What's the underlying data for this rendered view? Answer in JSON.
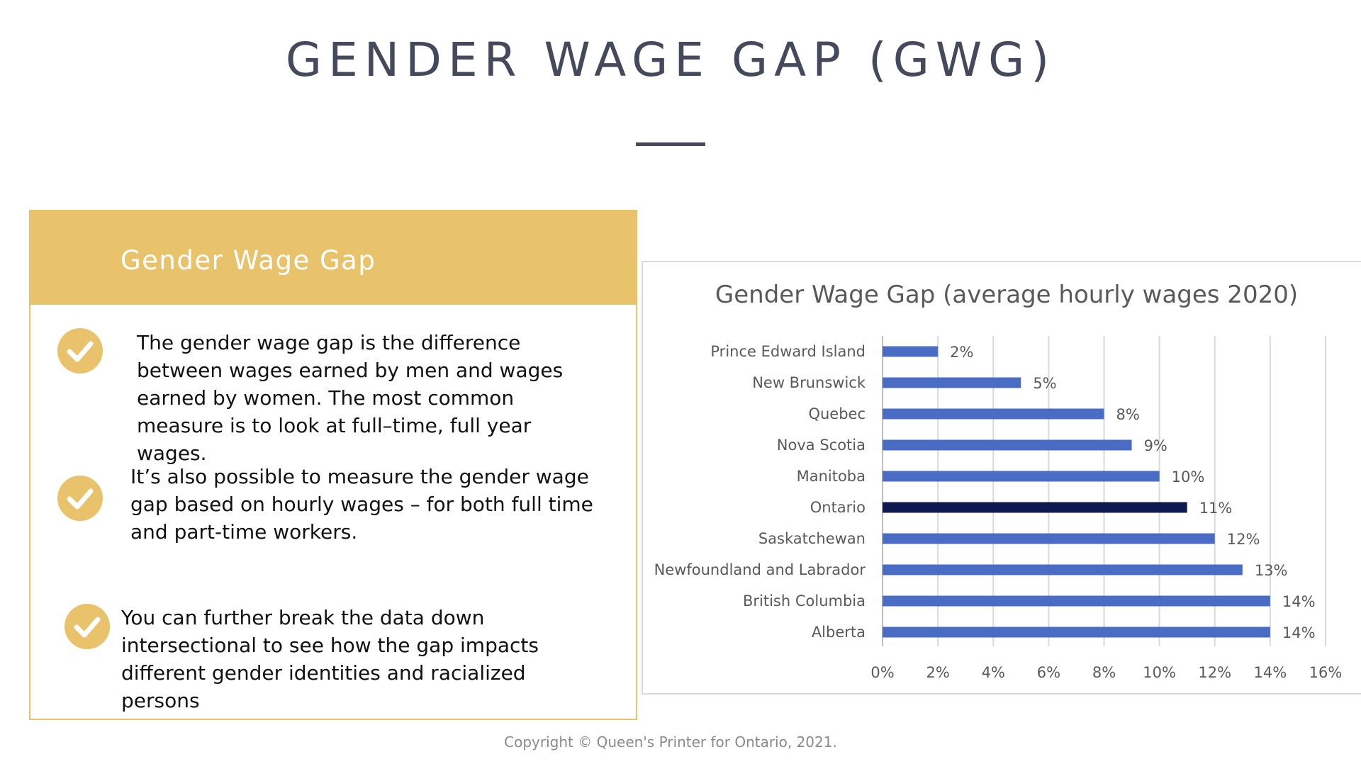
{
  "slide": {
    "title": "GENDER WAGE GAP (GWG)",
    "copyright": "Copyright © Queen's Printer for Ontario, 2021."
  },
  "info_card": {
    "title": "Gender Wage Gap",
    "bullets": [
      "The gender wage gap is the difference between wages earned by men and wages earned by women. The most common measure is to look at full–time, full year wages.",
      "It’s also possible to measure the gender wage gap based on hourly wages – for both full time and part-time workers.",
      "You can further break the data down intersectional to see how the gap impacts different gender identities and racialized persons"
    ]
  },
  "colors": {
    "accent": "#e8c36c",
    "title": "#44495c",
    "bar": "#4a6cc4",
    "bar_highlight": "#0e1a4f",
    "grid": "#d9d9d9"
  },
  "chart_data": {
    "type": "bar",
    "orientation": "horizontal",
    "title": "Gender Wage Gap (average hourly wages 2020)",
    "categories": [
      "Prince Edward Island",
      "New Brunswick",
      "Quebec",
      "Nova Scotia",
      "Manitoba",
      "Ontario",
      "Saskatchewan",
      "Newfoundland and Labrador",
      "British Columbia",
      "Alberta"
    ],
    "values": [
      2,
      5,
      8,
      9,
      10,
      11,
      12,
      13,
      14,
      14
    ],
    "data_labels": [
      "2%",
      "5%",
      "8%",
      "9%",
      "10%",
      "11%",
      "12%",
      "13%",
      "14%",
      "14%"
    ],
    "highlight": "Ontario",
    "xlim": [
      0,
      16
    ],
    "xticks": [
      0,
      2,
      4,
      6,
      8,
      10,
      12,
      14,
      16
    ],
    "xtick_labels": [
      "0%",
      "2%",
      "4%",
      "6%",
      "8%",
      "10%",
      "12%",
      "14%",
      "16%"
    ],
    "xlabel": "",
    "ylabel": "",
    "grid": true,
    "legend": false
  }
}
